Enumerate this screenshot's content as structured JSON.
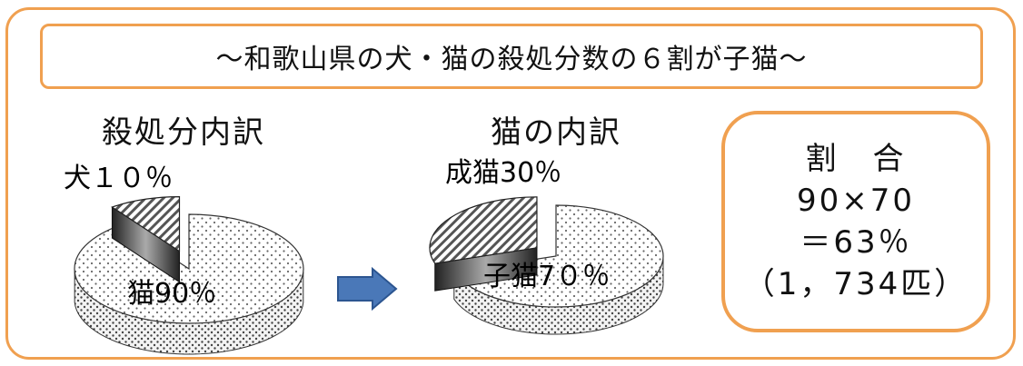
{
  "banner": {
    "text": "～和歌山県の犬・猫の殺処分数の６割が子猫～"
  },
  "chart_data": [
    {
      "type": "pie",
      "title": "殺処分内訳",
      "categories": [
        "犬",
        "猫"
      ],
      "values": [
        10,
        90
      ],
      "data_labels": [
        "犬１０％",
        "猫90％"
      ],
      "exploded": "犬"
    },
    {
      "type": "pie",
      "title": "猫の内訳",
      "categories": [
        "成猫",
        "子猫"
      ],
      "values": [
        30,
        70
      ],
      "data_labels": [
        "成猫30％",
        "子猫7０％"
      ],
      "exploded": "成猫"
    }
  ],
  "ratio": {
    "heading": "割　合",
    "formula": "90×70",
    "result": "＝63％",
    "count": "（1，734匹）"
  },
  "colors": {
    "border": "#f0a050",
    "arrow": "#4a78b8"
  }
}
